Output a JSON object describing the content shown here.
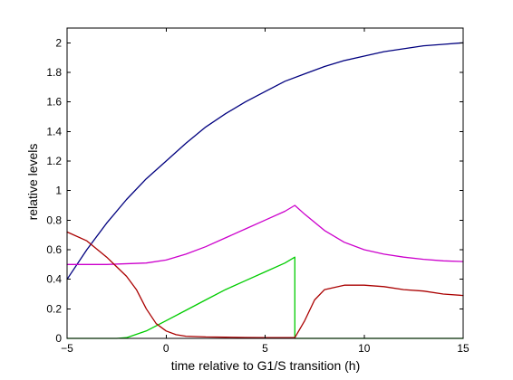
{
  "chart_data": {
    "type": "line",
    "title": "",
    "xlabel": "time relative to G1/S transition (h)",
    "ylabel": "relative levels",
    "xlim": [
      -5,
      15
    ],
    "ylim": [
      0,
      2.1
    ],
    "xticks": [
      -5,
      0,
      5,
      10,
      15
    ],
    "xtick_labels": [
      "−5",
      "0",
      "5",
      "10",
      "15"
    ],
    "yticks": [
      0,
      0.2,
      0.4,
      0.6,
      0.8,
      1,
      1.2,
      1.4,
      1.6,
      1.8,
      2
    ],
    "ytick_labels": [
      "0",
      "0.2",
      "0.4",
      "0.6",
      "0.8",
      "1",
      "1.2",
      "1.4",
      "1.6",
      "1.8",
      "2"
    ],
    "grid": false,
    "legend": "none",
    "series": [
      {
        "color": "#00007f",
        "x": [
          -5,
          -4,
          -3,
          -2,
          -1,
          0,
          1,
          2,
          3,
          4,
          5,
          6,
          7,
          8,
          9,
          10,
          11,
          12,
          13,
          14,
          15
        ],
        "y": [
          0.4,
          0.6,
          0.78,
          0.94,
          1.08,
          1.2,
          1.32,
          1.43,
          1.52,
          1.6,
          1.67,
          1.74,
          1.79,
          1.84,
          1.88,
          1.91,
          1.94,
          1.96,
          1.98,
          1.99,
          2.0
        ]
      },
      {
        "color": "#cc00cc",
        "x": [
          -5,
          -3,
          -1,
          0,
          1,
          2,
          3,
          4,
          5,
          6,
          6.5,
          7,
          8,
          9,
          10,
          11,
          12,
          13,
          14,
          15
        ],
        "y": [
          0.5,
          0.5,
          0.51,
          0.53,
          0.57,
          0.62,
          0.68,
          0.74,
          0.8,
          0.86,
          0.9,
          0.84,
          0.73,
          0.65,
          0.6,
          0.57,
          0.55,
          0.535,
          0.525,
          0.52
        ]
      },
      {
        "color": "#00cc00",
        "x": [
          -5,
          -2.5,
          -2,
          -1,
          0,
          1,
          2,
          3,
          4,
          5,
          6,
          6.5,
          6.5,
          7,
          10,
          15
        ],
        "y": [
          0.0,
          0.0,
          0.005,
          0.05,
          0.12,
          0.19,
          0.26,
          0.33,
          0.39,
          0.45,
          0.51,
          0.55,
          0.0,
          0.0,
          0.0,
          0.0
        ]
      },
      {
        "color": "#aa0000",
        "x": [
          -5,
          -4,
          -3,
          -2,
          -1.5,
          -1,
          -0.5,
          0,
          0.5,
          1,
          2,
          3,
          4,
          5,
          6,
          6.5,
          7,
          7.5,
          8,
          9,
          10,
          11,
          12,
          13,
          14,
          15
        ],
        "y": [
          0.72,
          0.66,
          0.55,
          0.42,
          0.33,
          0.2,
          0.1,
          0.05,
          0.025,
          0.015,
          0.01,
          0.008,
          0.006,
          0.005,
          0.005,
          0.005,
          0.12,
          0.26,
          0.33,
          0.36,
          0.36,
          0.35,
          0.33,
          0.32,
          0.3,
          0.29
        ]
      }
    ]
  }
}
